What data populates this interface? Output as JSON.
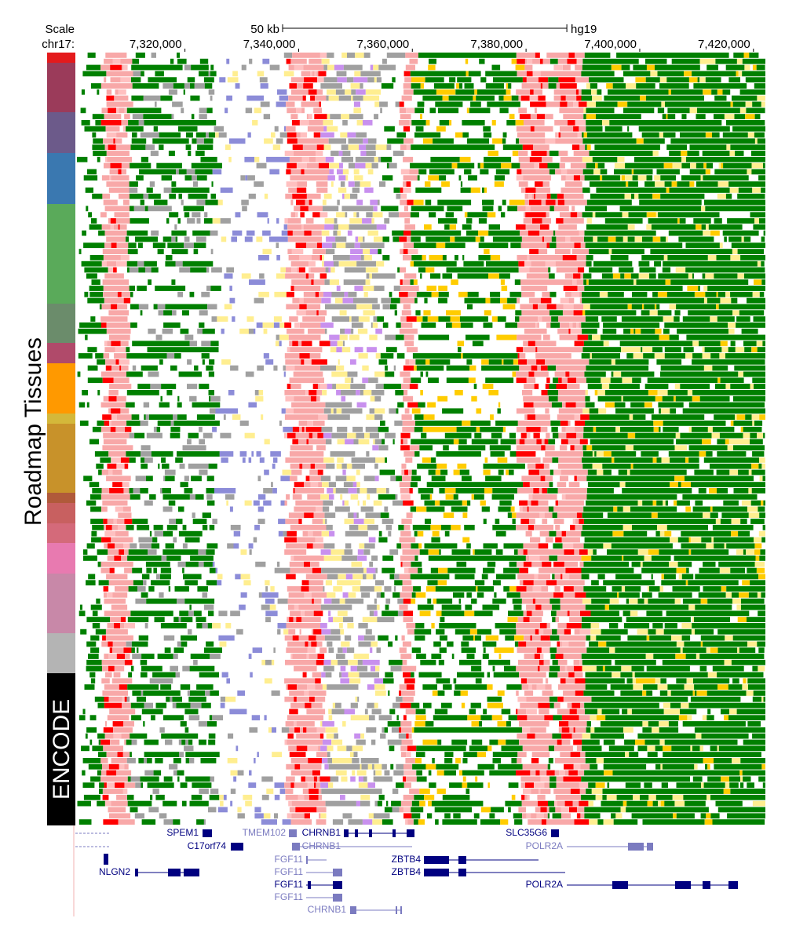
{
  "header": {
    "scale_label": "Scale",
    "chrom_label": "chr17:",
    "assembly": "hg19"
  },
  "chart_data": {
    "type": "genome-browser",
    "scale_bar": {
      "value": 50000,
      "label": "50 kb"
    },
    "xlim": [
      7301000,
      7422100
    ],
    "xticks": [
      {
        "value": 7320000,
        "label": "7,320,000"
      },
      {
        "value": 7340000,
        "label": "7,340,000"
      },
      {
        "value": 7360000,
        "label": "7,360,000"
      },
      {
        "value": 7380000,
        "label": "7,380,000"
      },
      {
        "value": 7400000,
        "label": "7,400,000"
      },
      {
        "value": 7420000,
        "label": "7,420,000"
      }
    ]
  },
  "side_labels": {
    "roadmap": "Roadmap Tissues",
    "encode": "ENCODE"
  },
  "genes": [
    "SPEM1",
    "C17orf74",
    "TMEM102",
    "CHRNB1",
    "CHRNB1",
    "NLGN2",
    "FGF11",
    "FGF11",
    "FGF11",
    "FGF11",
    "CHRNB1",
    "ZBTB4",
    "ZBTB4",
    "SLC35G6",
    "POLR2A",
    "POLR2A"
  ]
}
